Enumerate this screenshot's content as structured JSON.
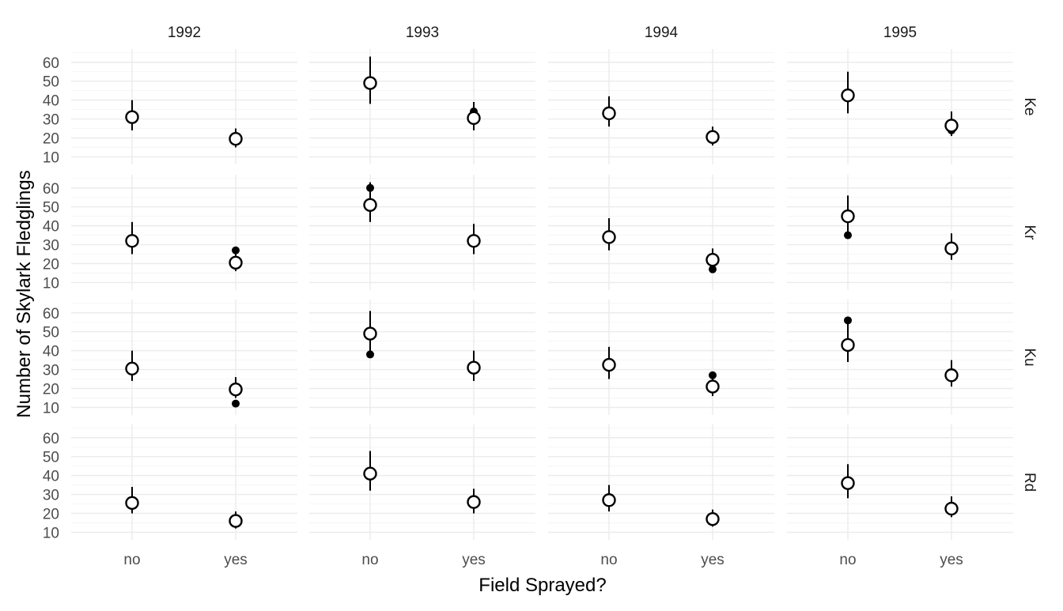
{
  "chart_data": {
    "type": "scatter",
    "xlabel": "Field Sprayed?",
    "ylabel": "Number of Skylark Fledglings",
    "categories": [
      "no",
      "yes"
    ],
    "years": [
      "1992",
      "1993",
      "1994",
      "1995"
    ],
    "sites": [
      "Ke",
      "Kr",
      "Ku",
      "Rd"
    ],
    "ylim": [
      6,
      67
    ],
    "yticks": [
      10,
      20,
      30,
      40,
      50,
      60
    ],
    "grid": true,
    "marker_styles": {
      "estimate": "open-circle",
      "observed": "filled-dot"
    },
    "panels": [
      {
        "site": "Ke",
        "year": "1992",
        "points": [
          {
            "x": "no",
            "estimate": 31,
            "lower": 24,
            "upper": 40,
            "observed": 32
          },
          {
            "x": "yes",
            "estimate": 19.5,
            "lower": 15,
            "upper": 25,
            "observed": 19
          }
        ]
      },
      {
        "site": "Ke",
        "year": "1993",
        "points": [
          {
            "x": "no",
            "estimate": 49,
            "lower": 38,
            "upper": 63,
            "observed": 48
          },
          {
            "x": "yes",
            "estimate": 30.5,
            "lower": 24,
            "upper": 39,
            "observed": 34
          }
        ]
      },
      {
        "site": "Ke",
        "year": "1994",
        "points": [
          {
            "x": "no",
            "estimate": 33,
            "lower": 26,
            "upper": 42,
            "observed": 34
          },
          {
            "x": "yes",
            "estimate": 20.5,
            "lower": 16,
            "upper": 26,
            "observed": 21
          }
        ]
      },
      {
        "site": "Ke",
        "year": "1995",
        "points": [
          {
            "x": "no",
            "estimate": 42.5,
            "lower": 33,
            "upper": 55,
            "observed": 42
          },
          {
            "x": "yes",
            "estimate": 26.5,
            "lower": 21,
            "upper": 34,
            "observed": 24
          }
        ]
      },
      {
        "site": "Kr",
        "year": "1992",
        "points": [
          {
            "x": "no",
            "estimate": 32,
            "lower": 25,
            "upper": 42,
            "observed": 32
          },
          {
            "x": "yes",
            "estimate": 20.5,
            "lower": 16,
            "upper": 26,
            "observed": 27
          }
        ]
      },
      {
        "site": "Kr",
        "year": "1993",
        "points": [
          {
            "x": "no",
            "estimate": 51,
            "lower": 42,
            "upper": 63,
            "observed": 60
          },
          {
            "x": "yes",
            "estimate": 32,
            "lower": 25,
            "upper": 41,
            "observed": 32
          }
        ]
      },
      {
        "site": "Kr",
        "year": "1994",
        "points": [
          {
            "x": "no",
            "estimate": 34,
            "lower": 27,
            "upper": 44,
            "observed": 34
          },
          {
            "x": "yes",
            "estimate": 22,
            "lower": 17,
            "upper": 28,
            "observed": 17
          }
        ]
      },
      {
        "site": "Kr",
        "year": "1995",
        "points": [
          {
            "x": "no",
            "estimate": 45,
            "lower": 35,
            "upper": 56,
            "observed": 35
          },
          {
            "x": "yes",
            "estimate": 28,
            "lower": 22,
            "upper": 36,
            "observed": 28
          }
        ]
      },
      {
        "site": "Ku",
        "year": "1992",
        "points": [
          {
            "x": "no",
            "estimate": 30.5,
            "lower": 24,
            "upper": 40,
            "observed": 31
          },
          {
            "x": "yes",
            "estimate": 19.5,
            "lower": 15,
            "upper": 26,
            "observed": 12
          }
        ]
      },
      {
        "site": "Ku",
        "year": "1993",
        "points": [
          {
            "x": "no",
            "estimate": 49,
            "lower": 38,
            "upper": 61,
            "observed": 38
          },
          {
            "x": "yes",
            "estimate": 31,
            "lower": 24,
            "upper": 40,
            "observed": 31
          }
        ]
      },
      {
        "site": "Ku",
        "year": "1994",
        "points": [
          {
            "x": "no",
            "estimate": 32.5,
            "lower": 25,
            "upper": 42,
            "observed": 33
          },
          {
            "x": "yes",
            "estimate": 21,
            "lower": 16,
            "upper": 27,
            "observed": 27
          }
        ]
      },
      {
        "site": "Ku",
        "year": "1995",
        "points": [
          {
            "x": "no",
            "estimate": 43,
            "lower": 34,
            "upper": 55,
            "observed": 56
          },
          {
            "x": "yes",
            "estimate": 27,
            "lower": 21,
            "upper": 35,
            "observed": 27
          }
        ]
      },
      {
        "site": "Rd",
        "year": "1992",
        "points": [
          {
            "x": "no",
            "estimate": 25.5,
            "lower": 20,
            "upper": 34,
            "observed": 26
          },
          {
            "x": "yes",
            "estimate": 16,
            "lower": 12,
            "upper": 21,
            "observed": 16
          }
        ]
      },
      {
        "site": "Rd",
        "year": "1993",
        "points": [
          {
            "x": "no",
            "estimate": 41,
            "lower": 32,
            "upper": 53,
            "observed": 41
          },
          {
            "x": "yes",
            "estimate": 26,
            "lower": 20,
            "upper": 33,
            "observed": 26
          }
        ]
      },
      {
        "site": "Rd",
        "year": "1994",
        "points": [
          {
            "x": "no",
            "estimate": 27,
            "lower": 21,
            "upper": 35,
            "observed": 26
          },
          {
            "x": "yes",
            "estimate": 17,
            "lower": 13,
            "upper": 22,
            "observed": 17
          }
        ]
      },
      {
        "site": "Rd",
        "year": "1995",
        "points": [
          {
            "x": "no",
            "estimate": 36,
            "lower": 28,
            "upper": 46,
            "observed": 36
          },
          {
            "x": "yes",
            "estimate": 22.5,
            "lower": 18,
            "upper": 29,
            "observed": 24
          }
        ]
      }
    ]
  }
}
